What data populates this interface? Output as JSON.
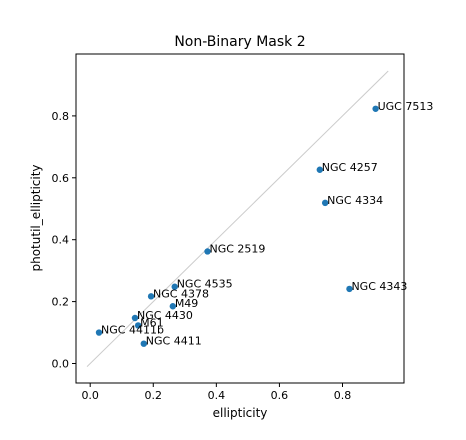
{
  "chart_data": {
    "type": "scatter",
    "title": "Non-Binary Mask 2",
    "xlabel": "ellipticity",
    "ylabel": "photutil_ellipticity",
    "xlim": [
      -0.045,
      0.995
    ],
    "ylim": [
      -0.063,
      1.0
    ],
    "x_ticks": [
      0.0,
      0.2,
      0.4,
      0.6,
      0.8
    ],
    "x_tick_labels": [
      "0.0",
      "0.2",
      "0.4",
      "0.6",
      "0.8"
    ],
    "y_ticks": [
      0.0,
      0.2,
      0.4,
      0.6,
      0.8
    ],
    "y_tick_labels": [
      "0.0",
      "0.2",
      "0.4",
      "0.6",
      "0.8"
    ],
    "grid": false,
    "reference_line": {
      "x": [
        -0.01,
        0.945
      ],
      "y": [
        -0.01,
        0.945
      ],
      "color": "#cccccc"
    },
    "marker_color": "#1f77b4",
    "points": [
      {
        "label": "UGC 7513",
        "x": 0.905,
        "y": 0.823
      },
      {
        "label": "NGC 4257",
        "x": 0.728,
        "y": 0.626
      },
      {
        "label": "NGC 4334",
        "x": 0.745,
        "y": 0.519
      },
      {
        "label": "NGC 2519",
        "x": 0.372,
        "y": 0.362
      },
      {
        "label": "NGC 4343",
        "x": 0.822,
        "y": 0.241
      },
      {
        "label": "NGC 4535",
        "x": 0.268,
        "y": 0.248
      },
      {
        "label": "NGC 4378",
        "x": 0.193,
        "y": 0.217
      },
      {
        "label": "M49",
        "x": 0.262,
        "y": 0.185
      },
      {
        "label": "NGC 4430",
        "x": 0.142,
        "y": 0.147
      },
      {
        "label": "M61",
        "x": 0.152,
        "y": 0.123
      },
      {
        "label": "NGC 4411b",
        "x": 0.028,
        "y": 0.1
      },
      {
        "label": "NGC 4411",
        "x": 0.17,
        "y": 0.064
      }
    ]
  }
}
